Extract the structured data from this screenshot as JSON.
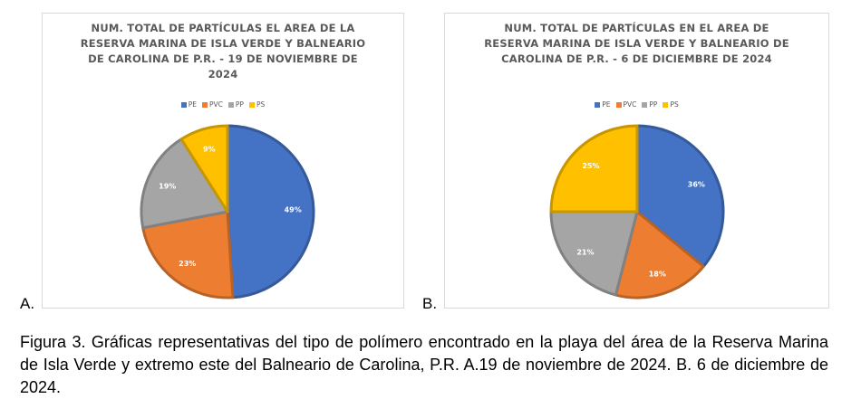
{
  "chart_data": [
    {
      "type": "pie",
      "title": "NUM. TOTAL DE PARTÍCULAS EL AREA DE LA RESERVA MARINA DE ISLA VERDE Y BALNEARIO DE CAROLINA DE P.R. - 19 DE NOVIEMBRE DE 2024",
      "categories": [
        "PE",
        "PVC",
        "PP",
        "PS"
      ],
      "values": [
        49,
        23,
        19,
        9
      ],
      "labels": [
        "49%",
        "23%",
        "19%",
        "9%"
      ],
      "colors": [
        "#4472C4",
        "#ED7D31",
        "#A5A5A5",
        "#FFC000"
      ],
      "legend_position": "top"
    },
    {
      "type": "pie",
      "title": "NUM. TOTAL DE PARTÍCULAS EN EL AREA DE RESERVA MARINA DE ISLA VERDE Y BALNEARIO DE CAROLINA DE P.R. - 6 DE DICIEMBRE DE 2024",
      "categories": [
        "PE",
        "PVC",
        "PP",
        "PS"
      ],
      "values": [
        36,
        18,
        21,
        25
      ],
      "labels": [
        "36%",
        "18%",
        "21%",
        "25%"
      ],
      "colors": [
        "#4472C4",
        "#ED7D31",
        "#A5A5A5",
        "#FFC000"
      ],
      "legend_position": "top"
    }
  ],
  "panel_letters": [
    "A.",
    "B."
  ],
  "caption": "Figura 3. Gráficas representativas del tipo de polímero encontrado en la playa del área de la Reserva Marina de Isla Verde y extremo este del Balneario de Carolina, P.R. A.19 de noviembre de 2024. B. 6 de diciembre de 2024."
}
